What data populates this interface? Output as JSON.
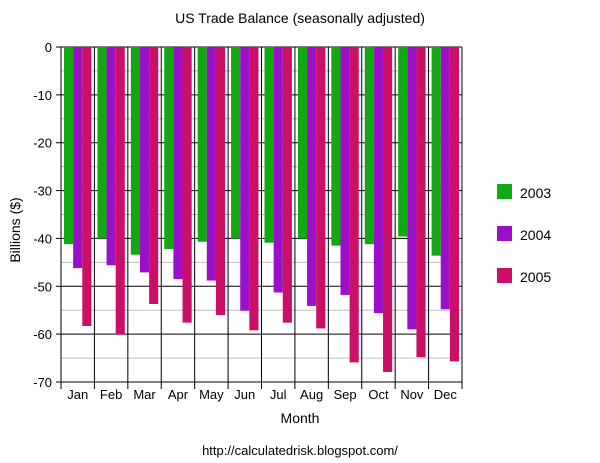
{
  "chart_data": {
    "type": "bar",
    "title": "US Trade Balance (seasonally adjusted)",
    "xlabel": "Month",
    "ylabel": "Billions ($)",
    "ylim": [
      -70,
      0
    ],
    "yticks": [
      0,
      -10,
      -20,
      -30,
      -40,
      -50,
      -60,
      -70
    ],
    "minor_gridlines": [
      -5,
      -15,
      -25,
      -35,
      -45,
      -55,
      -65
    ],
    "grid": true,
    "legend_position": "right",
    "categories": [
      "Jan",
      "Feb",
      "Mar",
      "Apr",
      "May",
      "Jun",
      "Jul",
      "Aug",
      "Sep",
      "Oct",
      "Nov",
      "Dec"
    ],
    "series": [
      {
        "name": "2003",
        "color": "#11a811",
        "values": [
          -41.2,
          -40.0,
          -43.4,
          -42.2,
          -40.7,
          -40.0,
          -40.9,
          -40.0,
          -41.5,
          -41.2,
          -39.6,
          -43.6
        ]
      },
      {
        "name": "2004",
        "color": "#9b0fc8",
        "values": [
          -46.2,
          -45.6,
          -47.1,
          -48.5,
          -48.8,
          -55.1,
          -51.3,
          -54.1,
          -51.8,
          -55.6,
          -59.0,
          -54.8
        ]
      },
      {
        "name": "2005",
        "color": "#cc0f66",
        "values": [
          -58.3,
          -60.1,
          -53.7,
          -57.6,
          -56.0,
          -59.2,
          -57.6,
          -58.8,
          -65.9,
          -67.9,
          -64.8,
          -65.7
        ]
      }
    ]
  },
  "footer": {
    "source": "http://calculatedrisk.blogspot.com/"
  }
}
